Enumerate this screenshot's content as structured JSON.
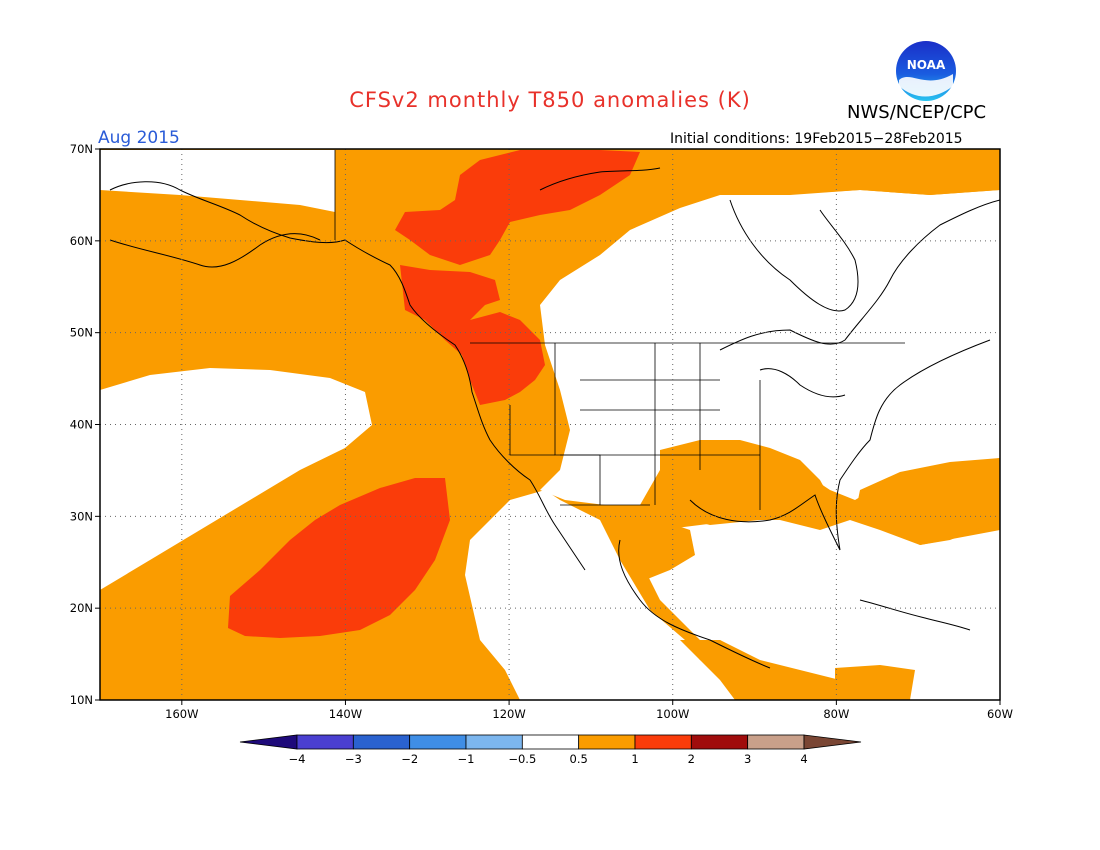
{
  "header": {
    "title": "CFSv2 monthly T850 anomalies (K)",
    "org": "NWS/NCEP/CPC",
    "logo_text": "NOAA",
    "period": "Aug 2015",
    "initial_conditions": "Initial conditions: 19Feb2015−28Feb2015"
  },
  "map": {
    "projection": "cylindrical equidistant",
    "lon_range": [
      -170,
      -60
    ],
    "lat_range": [
      10,
      70
    ],
    "lon_labels": [
      "160W",
      "140W",
      "120W",
      "100W",
      "80W",
      "60W"
    ],
    "lat_labels": [
      "70N",
      "60N",
      "50N",
      "40N",
      "30N",
      "20N",
      "10N"
    ],
    "gridlines": "dotted"
  },
  "legend": {
    "tick_labels": [
      "−4",
      "−3",
      "−2",
      "−1",
      "−0.5",
      "0.5",
      "1",
      "2",
      "3",
      "4"
    ],
    "colors": [
      "#1e0a7a",
      "#4a3fd0",
      "#2a62cf",
      "#3f8ee6",
      "#7cb6ee",
      "#ffffff",
      "#fa9c00",
      "#fa3c0a",
      "#a00c0c",
      "#c9a08a",
      "#7a4634"
    ]
  }
}
